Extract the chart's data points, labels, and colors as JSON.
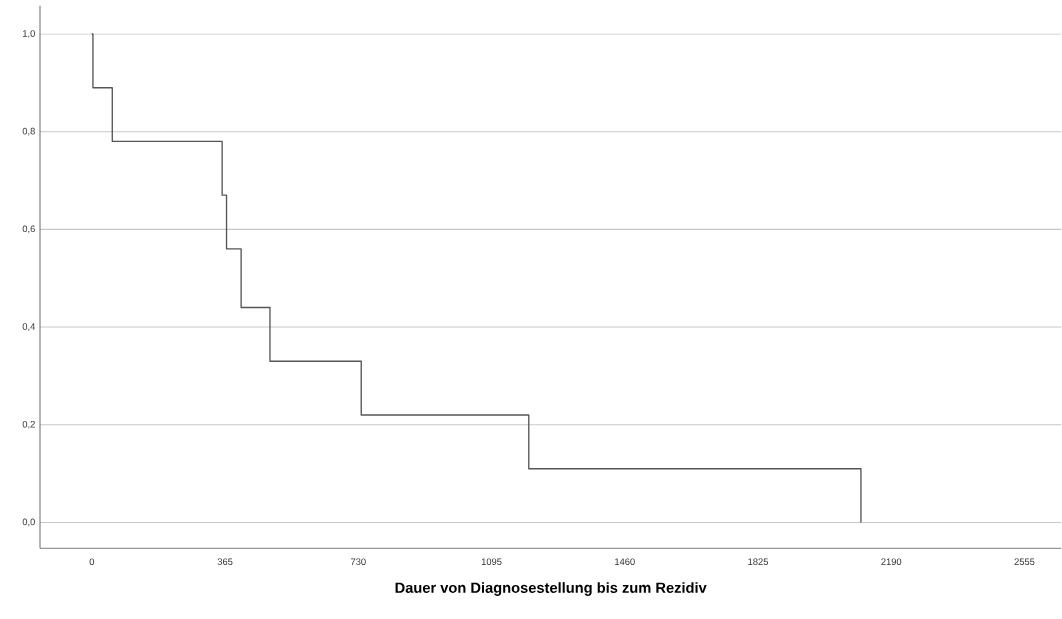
{
  "chart_data": {
    "type": "step",
    "xlabel": "Dauer von Diagnosestellung bis zum Rezidiv",
    "x": [
      0,
      3,
      56,
      357,
      369,
      409,
      488,
      738,
      1197,
      2107
    ],
    "values": [
      1.0,
      0.89,
      0.78,
      0.67,
      0.56,
      0.44,
      0.33,
      0.22,
      0.11,
      0.0
    ],
    "color": "#555555",
    "xlim": [
      -142,
      2656
    ],
    "ylim": [
      -0.053,
      1.058
    ],
    "xticks": [
      0,
      365,
      730,
      1095,
      1460,
      1825,
      2190,
      2555
    ],
    "yticks": [
      {
        "value": 0,
        "label": "0,0"
      },
      {
        "value": 0.2,
        "label": "0,2"
      },
      {
        "value": 0.4,
        "label": "0,4"
      },
      {
        "value": 0.6,
        "label": "0,6"
      },
      {
        "value": 0.8,
        "label": "0,8"
      },
      {
        "value": 1,
        "label": "1,0"
      }
    ],
    "grid": "y"
  }
}
